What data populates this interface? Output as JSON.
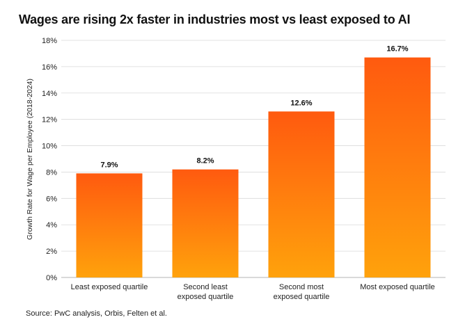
{
  "title": "Wages are rising 2x faster in industries most vs least exposed to AI",
  "source": "Source: PwC analysis, Orbis, Felten et al.",
  "colors": {
    "bar_top": "#FF5A0F",
    "bar_bottom": "#FFA20C",
    "grid": "#D9D9D9"
  },
  "chart_data": {
    "type": "bar",
    "title": "Wages are rising 2x faster in industries most vs least exposed to AI",
    "xlabel": "",
    "ylabel": "Growth Rate for Wage per Employee (2018-2024)",
    "categories": [
      [
        "Least exposed quartile"
      ],
      [
        "Second least",
        "exposed quartile"
      ],
      [
        "Second most",
        "exposed quartile"
      ],
      [
        "Most exposed quartile"
      ]
    ],
    "values": [
      7.9,
      8.2,
      12.6,
      16.7
    ],
    "value_labels": [
      "7.9%",
      "8.2%",
      "12.6%",
      "16.7%"
    ],
    "ylim": [
      0,
      18
    ],
    "yticks": [
      0,
      2,
      4,
      6,
      8,
      10,
      12,
      14,
      16,
      18
    ],
    "ytick_labels": [
      "0%",
      "2%",
      "4%",
      "6%",
      "8%",
      "10%",
      "12%",
      "14%",
      "16%",
      "18%"
    ],
    "grid": true,
    "legend": "none"
  }
}
